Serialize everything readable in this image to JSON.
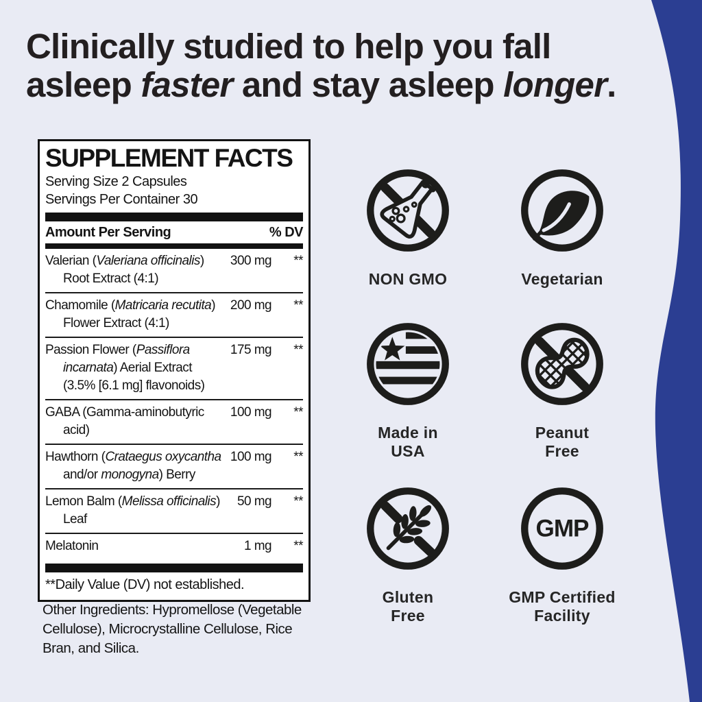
{
  "page": {
    "background_color": "#e9ebf4",
    "accent_blue": "#2b3e92",
    "ink_color": "#231f20"
  },
  "headline": {
    "lines": [
      [
        {
          "t": "Clinically studied to help you fall"
        }
      ],
      [
        {
          "t": "asleep "
        },
        {
          "t": "faster",
          "em": true
        },
        {
          "t": " and stay asleep "
        },
        {
          "t": "longer",
          "em": true
        },
        {
          "t": "."
        }
      ]
    ]
  },
  "supplement_facts": {
    "title": "SUPPLEMENT FACTS",
    "serving_size": "Serving Size 2 Capsules",
    "servings_per_container": "Servings Per Container 30",
    "col_amount": "Amount Per Serving",
    "col_dv": "% DV",
    "rows": [
      {
        "lines": [
          [
            {
              "t": "Valerian ("
            },
            {
              "t": "Valeriana officinalis",
              "i": true
            },
            {
              "t": ")"
            }
          ],
          [
            {
              "t": "Root Extract (4:1)"
            }
          ]
        ],
        "amount": "300 mg",
        "dv": "**"
      },
      {
        "lines": [
          [
            {
              "t": "Chamomile ("
            },
            {
              "t": "Matricaria recutita",
              "i": true
            },
            {
              "t": ")"
            }
          ],
          [
            {
              "t": "Flower Extract (4:1)"
            }
          ]
        ],
        "amount": "200 mg",
        "dv": "**"
      },
      {
        "lines": [
          [
            {
              "t": "Passion Flower ("
            },
            {
              "t": "Passiflora",
              "i": true
            }
          ],
          [
            {
              "t": "incarnata",
              "i": true
            },
            {
              "t": ") Aerial Extract"
            }
          ],
          [
            {
              "t": "(3.5% [6.1 mg] flavonoids)"
            }
          ]
        ],
        "amount": "175 mg",
        "dv": "**"
      },
      {
        "lines": [
          [
            {
              "t": "GABA (Gamma-aminobutyric"
            }
          ],
          [
            {
              "t": "acid)"
            }
          ]
        ],
        "amount": "100 mg",
        "dv": "**"
      },
      {
        "lines": [
          [
            {
              "t": "Hawthorn ("
            },
            {
              "t": "Crataegus oxycantha",
              "i": true
            }
          ],
          [
            {
              "t": "and/or "
            },
            {
              "t": "monogyna",
              "i": true
            },
            {
              "t": ") Berry"
            }
          ]
        ],
        "amount": "100 mg",
        "dv": "**"
      },
      {
        "lines": [
          [
            {
              "t": "Lemon Balm ("
            },
            {
              "t": "Melissa officinalis",
              "i": true
            },
            {
              "t": ")"
            }
          ],
          [
            {
              "t": "Leaf"
            }
          ]
        ],
        "amount": "50 mg",
        "dv": "**"
      },
      {
        "lines": [
          [
            {
              "t": "Melatonin"
            }
          ]
        ],
        "amount": "1 mg",
        "dv": "**"
      }
    ],
    "footnote": "**Daily Value (DV) not established."
  },
  "other_ingredients": "Other Ingredients: Hypromellose (Vegetable Cellulose), Microcrystalline Cellulose, Rice Bran, and Silica.",
  "badges": [
    {
      "icon": "no-gmo-flask-icon",
      "label_lines": [
        "NON GMO"
      ]
    },
    {
      "icon": "vegetarian-leaf-icon",
      "label_lines": [
        "Vegetarian"
      ]
    },
    {
      "icon": "made-in-usa-flag-icon",
      "label_lines": [
        "Made in",
        "USA"
      ]
    },
    {
      "icon": "no-peanut-icon",
      "label_lines": [
        "Peanut",
        "Free"
      ]
    },
    {
      "icon": "no-gluten-wheat-icon",
      "label_lines": [
        "Gluten",
        "Free"
      ]
    },
    {
      "icon": "gmp-circle-icon",
      "label_lines": [
        "GMP Certified",
        "Facility"
      ],
      "icon_text": "GMP"
    }
  ]
}
